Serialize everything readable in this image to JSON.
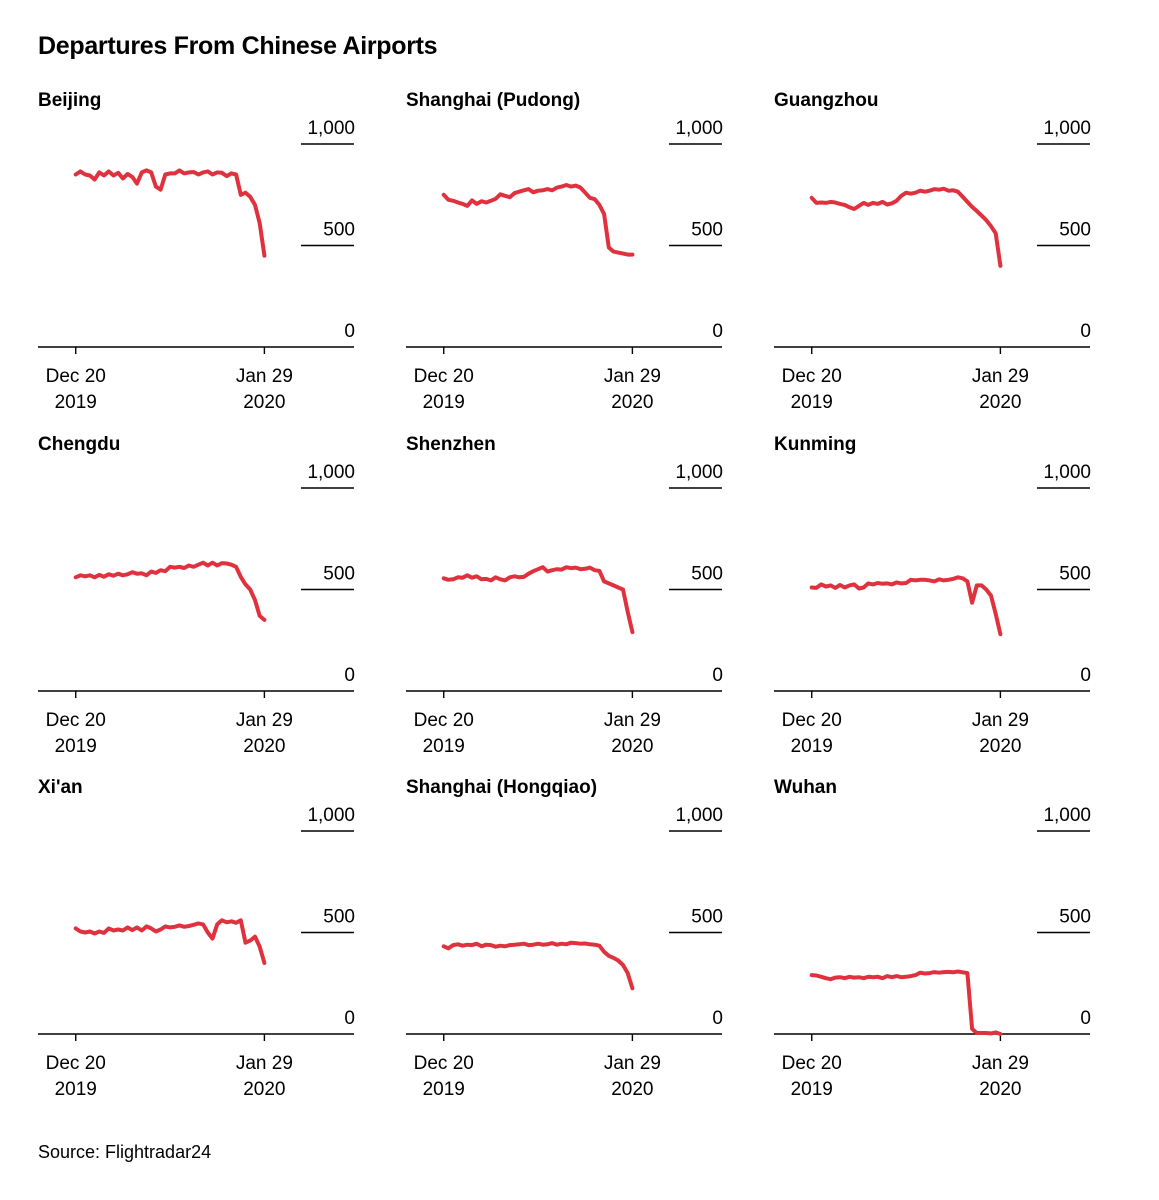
{
  "title": "Departures From Chinese Airports",
  "source": "Source: Flightradar24",
  "colors": {
    "line": "#e0323e",
    "axis": "#000000",
    "text": "#000000"
  },
  "chart_data": [
    {
      "type": "line",
      "title": "Beijing",
      "ylim": [
        0,
        1000
      ],
      "yticks": [
        {
          "value": 1000,
          "label": "1,000"
        },
        {
          "value": 500,
          "label": "500"
        },
        {
          "value": 0,
          "label": "0"
        }
      ],
      "xticks": [
        {
          "x": 0,
          "line1": "Dec 20",
          "line2": "2019"
        },
        {
          "x": 40,
          "line1": "Jan 29",
          "line2": "2020"
        }
      ],
      "xlim": [
        -8,
        59
      ],
      "x": [
        0,
        1,
        2,
        3,
        4,
        5,
        6,
        7,
        8,
        9,
        10,
        11,
        12,
        13,
        14,
        15,
        16,
        17,
        18,
        19,
        20,
        21,
        22,
        23,
        24,
        25,
        26,
        27,
        28,
        29,
        30,
        31,
        32,
        33,
        34,
        35,
        36,
        37,
        38,
        39,
        40
      ],
      "values": [
        850,
        865,
        850,
        845,
        825,
        860,
        845,
        865,
        845,
        858,
        830,
        852,
        838,
        805,
        860,
        870,
        860,
        790,
        775,
        850,
        855,
        855,
        870,
        855,
        860,
        862,
        850,
        860,
        865,
        850,
        860,
        858,
        842,
        855,
        850,
        750,
        760,
        740,
        700,
        610,
        450
      ]
    },
    {
      "type": "line",
      "title": "Shanghai (Pudong)",
      "ylim": [
        0,
        1000
      ],
      "yticks": [
        {
          "value": 1000,
          "label": "1,000"
        },
        {
          "value": 500,
          "label": "500"
        },
        {
          "value": 0,
          "label": "0"
        }
      ],
      "xticks": [
        {
          "x": 0,
          "line1": "Dec 20",
          "line2": "2019"
        },
        {
          "x": 40,
          "line1": "Jan 29",
          "line2": "2020"
        }
      ],
      "xlim": [
        -8,
        59
      ],
      "x": [
        0,
        1,
        2,
        3,
        4,
        5,
        6,
        7,
        8,
        9,
        10,
        11,
        12,
        13,
        14,
        15,
        16,
        17,
        18,
        19,
        20,
        21,
        22,
        23,
        24,
        25,
        26,
        27,
        28,
        29,
        30,
        31,
        32,
        33,
        34,
        35,
        36,
        37,
        38,
        39,
        40
      ],
      "values": [
        750,
        725,
        720,
        712,
        705,
        695,
        722,
        705,
        718,
        712,
        720,
        730,
        752,
        745,
        738,
        758,
        765,
        772,
        778,
        762,
        770,
        772,
        778,
        772,
        785,
        790,
        798,
        790,
        795,
        785,
        760,
        735,
        728,
        700,
        655,
        490,
        470,
        465,
        460,
        455,
        455
      ]
    },
    {
      "type": "line",
      "title": "Guangzhou",
      "ylim": [
        0,
        1000
      ],
      "yticks": [
        {
          "value": 1000,
          "label": "1,000"
        },
        {
          "value": 500,
          "label": "500"
        },
        {
          "value": 0,
          "label": "0"
        }
      ],
      "xticks": [
        {
          "x": 0,
          "line1": "Dec 20",
          "line2": "2019"
        },
        {
          "x": 40,
          "line1": "Jan 29",
          "line2": "2020"
        }
      ],
      "xlim": [
        -8,
        59
      ],
      "x": [
        0,
        1,
        2,
        3,
        4,
        5,
        6,
        7,
        8,
        9,
        10,
        11,
        12,
        13,
        14,
        15,
        16,
        17,
        18,
        19,
        20,
        21,
        22,
        23,
        24,
        25,
        26,
        27,
        28,
        29,
        30,
        31,
        32,
        33,
        34,
        35,
        36,
        37,
        38,
        39,
        40
      ],
      "values": [
        735,
        710,
        712,
        710,
        715,
        712,
        705,
        700,
        688,
        680,
        695,
        710,
        700,
        710,
        705,
        715,
        702,
        708,
        720,
        745,
        760,
        755,
        760,
        770,
        765,
        770,
        778,
        775,
        780,
        770,
        772,
        765,
        740,
        715,
        690,
        670,
        648,
        625,
        595,
        560,
        400
      ]
    },
    {
      "type": "line",
      "title": "Chengdu",
      "ylim": [
        0,
        1000
      ],
      "yticks": [
        {
          "value": 1000,
          "label": "1,000"
        },
        {
          "value": 500,
          "label": "500"
        },
        {
          "value": 0,
          "label": "0"
        }
      ],
      "xticks": [
        {
          "x": 0,
          "line1": "Dec 20",
          "line2": "2019"
        },
        {
          "x": 40,
          "line1": "Jan 29",
          "line2": "2020"
        }
      ],
      "xlim": [
        -8,
        59
      ],
      "x": [
        0,
        1,
        2,
        3,
        4,
        5,
        6,
        7,
        8,
        9,
        10,
        11,
        12,
        13,
        14,
        15,
        16,
        17,
        18,
        19,
        20,
        21,
        22,
        23,
        24,
        25,
        26,
        27,
        28,
        29,
        30,
        31,
        32,
        33,
        34,
        35,
        36,
        37,
        38,
        39,
        40
      ],
      "values": [
        560,
        570,
        565,
        570,
        560,
        572,
        563,
        575,
        568,
        578,
        570,
        575,
        585,
        578,
        580,
        570,
        588,
        582,
        595,
        590,
        612,
        608,
        612,
        606,
        618,
        612,
        622,
        632,
        618,
        632,
        618,
        630,
        628,
        622,
        612,
        562,
        525,
        500,
        448,
        370,
        350
      ]
    },
    {
      "type": "line",
      "title": "Shenzhen",
      "ylim": [
        0,
        1000
      ],
      "yticks": [
        {
          "value": 1000,
          "label": "1,000"
        },
        {
          "value": 500,
          "label": "500"
        },
        {
          "value": 0,
          "label": "0"
        }
      ],
      "xticks": [
        {
          "x": 0,
          "line1": "Dec 20",
          "line2": "2019"
        },
        {
          "x": 40,
          "line1": "Jan 29",
          "line2": "2020"
        }
      ],
      "xlim": [
        -8,
        59
      ],
      "x": [
        0,
        1,
        2,
        3,
        4,
        5,
        6,
        7,
        8,
        9,
        10,
        11,
        12,
        13,
        14,
        15,
        16,
        17,
        18,
        19,
        20,
        21,
        22,
        23,
        24,
        25,
        26,
        27,
        28,
        29,
        30,
        31,
        32,
        33,
        34,
        35,
        36,
        37,
        38,
        39,
        40
      ],
      "values": [
        555,
        548,
        550,
        560,
        558,
        570,
        558,
        565,
        550,
        552,
        545,
        560,
        550,
        545,
        560,
        565,
        560,
        562,
        578,
        590,
        600,
        610,
        588,
        595,
        600,
        598,
        610,
        605,
        608,
        600,
        602,
        608,
        595,
        592,
        540,
        530,
        520,
        510,
        500,
        390,
        290
      ]
    },
    {
      "type": "line",
      "title": "Kunming",
      "ylim": [
        0,
        1000
      ],
      "yticks": [
        {
          "value": 1000,
          "label": "1,000"
        },
        {
          "value": 500,
          "label": "500"
        },
        {
          "value": 0,
          "label": "0"
        }
      ],
      "xticks": [
        {
          "x": 0,
          "line1": "Dec 20",
          "line2": "2019"
        },
        {
          "x": 40,
          "line1": "Jan 29",
          "line2": "2020"
        }
      ],
      "xlim": [
        -8,
        59
      ],
      "x": [
        0,
        1,
        2,
        3,
        4,
        5,
        6,
        7,
        8,
        9,
        10,
        11,
        12,
        13,
        14,
        15,
        16,
        17,
        18,
        19,
        20,
        21,
        22,
        23,
        24,
        25,
        26,
        27,
        28,
        29,
        30,
        31,
        32,
        33,
        34,
        35,
        36,
        37,
        38,
        39,
        40
      ],
      "values": [
        510,
        508,
        525,
        515,
        520,
        508,
        522,
        510,
        520,
        525,
        505,
        510,
        530,
        525,
        532,
        528,
        530,
        525,
        535,
        530,
        532,
        548,
        545,
        548,
        548,
        545,
        540,
        550,
        545,
        548,
        552,
        560,
        555,
        540,
        435,
        520,
        520,
        500,
        470,
        380,
        280
      ]
    },
    {
      "type": "line",
      "title": "Xi'an",
      "ylim": [
        0,
        1000
      ],
      "yticks": [
        {
          "value": 1000,
          "label": "1,000"
        },
        {
          "value": 500,
          "label": "500"
        },
        {
          "value": 0,
          "label": "0"
        }
      ],
      "xticks": [
        {
          "x": 0,
          "line1": "Dec 20",
          "line2": "2019"
        },
        {
          "x": 40,
          "line1": "Jan 29",
          "line2": "2020"
        }
      ],
      "xlim": [
        -8,
        59
      ],
      "x": [
        0,
        1,
        2,
        3,
        4,
        5,
        6,
        7,
        8,
        9,
        10,
        11,
        12,
        13,
        14,
        15,
        16,
        17,
        18,
        19,
        20,
        21,
        22,
        23,
        24,
        25,
        26,
        27,
        28,
        29,
        30,
        31,
        32,
        33,
        34,
        35,
        36,
        37,
        38,
        39,
        40
      ],
      "values": [
        520,
        505,
        500,
        505,
        495,
        505,
        498,
        520,
        510,
        515,
        510,
        525,
        512,
        525,
        510,
        530,
        520,
        505,
        515,
        530,
        525,
        528,
        535,
        528,
        532,
        538,
        545,
        540,
        500,
        470,
        540,
        560,
        550,
        555,
        548,
        560,
        450,
        460,
        480,
        430,
        350
      ]
    },
    {
      "type": "line",
      "title": "Shanghai (Hongqiao)",
      "ylim": [
        0,
        1000
      ],
      "yticks": [
        {
          "value": 1000,
          "label": "1,000"
        },
        {
          "value": 500,
          "label": "500"
        },
        {
          "value": 0,
          "label": "0"
        }
      ],
      "xticks": [
        {
          "x": 0,
          "line1": "Dec 20",
          "line2": "2019"
        },
        {
          "x": 40,
          "line1": "Jan 29",
          "line2": "2020"
        }
      ],
      "xlim": [
        -8,
        59
      ],
      "x": [
        0,
        1,
        2,
        3,
        4,
        5,
        6,
        7,
        8,
        9,
        10,
        11,
        12,
        13,
        14,
        15,
        16,
        17,
        18,
        19,
        20,
        21,
        22,
        23,
        24,
        25,
        26,
        27,
        28,
        29,
        30,
        31,
        32,
        33,
        34,
        35,
        36,
        37,
        38,
        39,
        40
      ],
      "values": [
        432,
        422,
        438,
        442,
        435,
        440,
        438,
        445,
        432,
        440,
        438,
        430,
        435,
        432,
        438,
        440,
        442,
        445,
        438,
        440,
        445,
        440,
        442,
        448,
        440,
        445,
        442,
        450,
        448,
        445,
        446,
        442,
        440,
        435,
        405,
        385,
        375,
        362,
        340,
        300,
        225
      ]
    },
    {
      "type": "line",
      "title": "Wuhan",
      "ylim": [
        0,
        1000
      ],
      "yticks": [
        {
          "value": 1000,
          "label": "1,000"
        },
        {
          "value": 500,
          "label": "500"
        },
        {
          "value": 0,
          "label": "0"
        }
      ],
      "xticks": [
        {
          "x": 0,
          "line1": "Dec 20",
          "line2": "2019"
        },
        {
          "x": 40,
          "line1": "Jan 29",
          "line2": "2020"
        }
      ],
      "xlim": [
        -8,
        59
      ],
      "x": [
        0,
        1,
        2,
        3,
        4,
        5,
        6,
        7,
        8,
        9,
        10,
        11,
        12,
        13,
        14,
        15,
        16,
        17,
        18,
        19,
        20,
        21,
        22,
        23,
        24,
        25,
        26,
        27,
        28,
        29,
        30,
        31,
        32,
        33,
        34,
        35,
        36,
        37,
        38,
        39,
        40
      ],
      "values": [
        290,
        288,
        282,
        275,
        270,
        278,
        280,
        275,
        282,
        278,
        280,
        275,
        282,
        280,
        282,
        275,
        285,
        280,
        285,
        280,
        282,
        285,
        290,
        302,
        298,
        300,
        305,
        302,
        305,
        306,
        304,
        308,
        304,
        300,
        25,
        5,
        5,
        5,
        3,
        8,
        0
      ]
    }
  ]
}
